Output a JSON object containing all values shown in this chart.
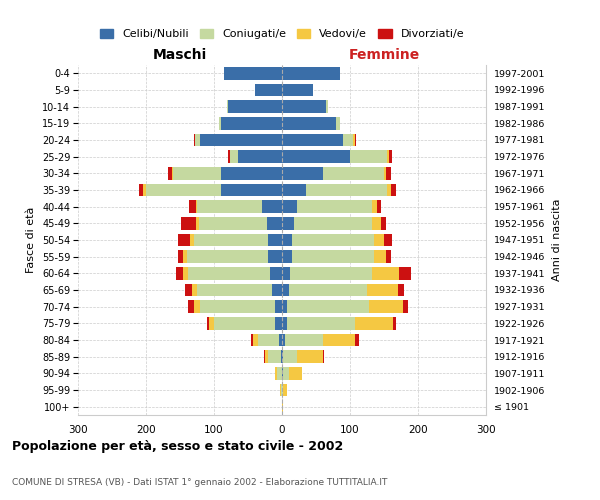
{
  "age_groups": [
    "100+",
    "95-99",
    "90-94",
    "85-89",
    "80-84",
    "75-79",
    "70-74",
    "65-69",
    "60-64",
    "55-59",
    "50-54",
    "45-49",
    "40-44",
    "35-39",
    "30-34",
    "25-29",
    "20-24",
    "15-19",
    "10-14",
    "5-9",
    "0-4"
  ],
  "birth_years": [
    "≤ 1901",
    "1902-1906",
    "1907-1911",
    "1912-1916",
    "1917-1921",
    "1922-1926",
    "1927-1931",
    "1932-1936",
    "1937-1941",
    "1942-1946",
    "1947-1951",
    "1952-1956",
    "1957-1961",
    "1962-1966",
    "1967-1971",
    "1972-1976",
    "1977-1981",
    "1982-1986",
    "1987-1991",
    "1992-1996",
    "1997-2001"
  ],
  "males": {
    "celibi": [
      0,
      0,
      0,
      2,
      5,
      10,
      10,
      15,
      18,
      20,
      20,
      22,
      30,
      90,
      90,
      65,
      120,
      90,
      80,
      40,
      85
    ],
    "coniugati": [
      0,
      2,
      8,
      18,
      30,
      90,
      110,
      110,
      120,
      120,
      110,
      100,
      95,
      110,
      70,
      12,
      8,
      2,
      1,
      0,
      0
    ],
    "vedovi": [
      0,
      1,
      3,
      5,
      8,
      8,
      10,
      8,
      8,
      5,
      5,
      5,
      2,
      5,
      2,
      0,
      0,
      0,
      0,
      0,
      0
    ],
    "divorziati": [
      0,
      0,
      0,
      2,
      2,
      2,
      8,
      10,
      10,
      8,
      18,
      22,
      10,
      5,
      5,
      2,
      2,
      0,
      0,
      0,
      0
    ]
  },
  "females": {
    "nubili": [
      0,
      0,
      2,
      2,
      5,
      8,
      8,
      10,
      12,
      15,
      15,
      18,
      22,
      35,
      60,
      100,
      90,
      80,
      65,
      45,
      85
    ],
    "coniugate": [
      0,
      2,
      8,
      20,
      55,
      100,
      120,
      115,
      120,
      120,
      120,
      115,
      110,
      120,
      90,
      55,
      15,
      5,
      2,
      0,
      0
    ],
    "vedove": [
      1,
      5,
      20,
      38,
      48,
      55,
      50,
      45,
      40,
      18,
      15,
      12,
      8,
      5,
      3,
      2,
      2,
      0,
      0,
      0,
      0
    ],
    "divorziate": [
      0,
      0,
      0,
      2,
      5,
      5,
      8,
      10,
      18,
      8,
      12,
      8,
      5,
      8,
      8,
      5,
      2,
      0,
      0,
      0,
      0
    ]
  },
  "colors": {
    "celibi": "#3a6ea8",
    "coniugati": "#c5d9a0",
    "vedovi": "#f5c842",
    "divorziati": "#cc1111"
  },
  "xlim": 300,
  "title": "Popolazione per età, sesso e stato civile - 2002",
  "subtitle": "COMUNE DI STRESA (VB) - Dati ISTAT 1° gennaio 2002 - Elaborazione TUTTITALIA.IT",
  "ylabel_left": "Fasce di età",
  "ylabel_right": "Anni di nascita",
  "xlabel_left": "Maschi",
  "xlabel_right": "Femmine",
  "legend_labels": [
    "Celibi/Nubili",
    "Coniugati/e",
    "Vedovi/e",
    "Divorziati/e"
  ],
  "background_color": "#ffffff",
  "grid_color": "#cccccc"
}
